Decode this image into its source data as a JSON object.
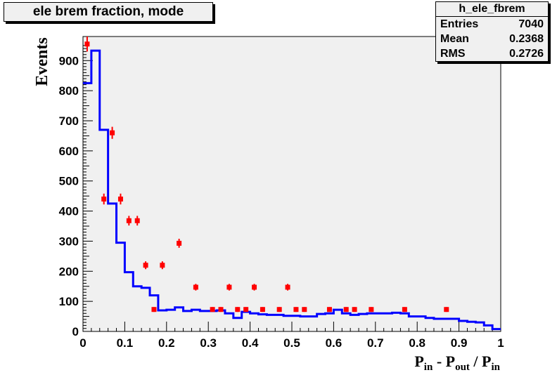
{
  "title": "ele brem fraction, mode",
  "stats": {
    "name": "h_ele_fbrem",
    "rows": [
      {
        "label": "Entries",
        "value": "7040"
      },
      {
        "label": "Mean",
        "value": "0.2368"
      },
      {
        "label": "RMS",
        "value": "0.2726"
      }
    ]
  },
  "colors": {
    "line": "#0000ff",
    "points": "#ff0000",
    "frame_bg": "#f0f0f0"
  },
  "chart_data": {
    "type": "histogram",
    "ylabel": "Events",
    "xlabel": {
      "base": "P",
      "sub1": "in",
      "mid": " - P",
      "sub2": "out",
      "sep": " / P",
      "sub3": "in"
    },
    "xlim": [
      0,
      1
    ],
    "ylim": [
      0,
      980
    ],
    "x_ticks": [
      "0",
      "0.1",
      "0.2",
      "0.3",
      "0.4",
      "0.5",
      "0.6",
      "0.7",
      "0.8",
      "0.9",
      "1"
    ],
    "y_ticks": [
      "0",
      "100",
      "200",
      "300",
      "400",
      "500",
      "600",
      "700",
      "800",
      "900"
    ],
    "series": [
      {
        "kind": "step-line",
        "bin_edges": [
          0,
          0.02,
          0.04,
          0.06,
          0.08,
          0.1,
          0.12,
          0.14,
          0.16,
          0.18,
          0.2,
          0.22,
          0.24,
          0.26,
          0.28,
          0.3,
          0.32,
          0.34,
          0.36,
          0.38,
          0.4,
          0.42,
          0.44,
          0.46,
          0.48,
          0.5,
          0.52,
          0.54,
          0.56,
          0.58,
          0.6,
          0.62,
          0.64,
          0.66,
          0.68,
          0.7,
          0.72,
          0.74,
          0.76,
          0.78,
          0.8,
          0.82,
          0.84,
          0.86,
          0.88,
          0.9,
          0.92,
          0.94,
          0.96,
          0.98,
          1.0
        ],
        "values": [
          825,
          933,
          670,
          425,
          295,
          197,
          150,
          145,
          120,
          70,
          72,
          80,
          68,
          72,
          68,
          68,
          70,
          60,
          45,
          65,
          60,
          57,
          55,
          55,
          52,
          52,
          50,
          50,
          58,
          60,
          72,
          60,
          55,
          58,
          60,
          60,
          60,
          62,
          60,
          50,
          50,
          45,
          42,
          42,
          42,
          35,
          32,
          30,
          20,
          8
        ]
      },
      {
        "kind": "points-with-errors",
        "points": [
          {
            "x": 0.01,
            "y": 955,
            "err": 25
          },
          {
            "x": 0.07,
            "y": 660,
            "err": 20
          },
          {
            "x": 0.05,
            "y": 440,
            "err": 18
          },
          {
            "x": 0.09,
            "y": 440,
            "err": 18
          },
          {
            "x": 0.11,
            "y": 368,
            "err": 16
          },
          {
            "x": 0.13,
            "y": 368,
            "err": 16
          },
          {
            "x": 0.15,
            "y": 220,
            "err": 13
          },
          {
            "x": 0.17,
            "y": 73,
            "err": 8
          },
          {
            "x": 0.19,
            "y": 220,
            "err": 13
          },
          {
            "x": 0.23,
            "y": 293,
            "err": 15
          },
          {
            "x": 0.27,
            "y": 147,
            "err": 11
          },
          {
            "x": 0.31,
            "y": 73,
            "err": 8
          },
          {
            "x": 0.33,
            "y": 73,
            "err": 8
          },
          {
            "x": 0.35,
            "y": 147,
            "err": 11
          },
          {
            "x": 0.37,
            "y": 73,
            "err": 8
          },
          {
            "x": 0.39,
            "y": 73,
            "err": 8
          },
          {
            "x": 0.41,
            "y": 147,
            "err": 11
          },
          {
            "x": 0.43,
            "y": 73,
            "err": 8
          },
          {
            "x": 0.47,
            "y": 73,
            "err": 8
          },
          {
            "x": 0.49,
            "y": 147,
            "err": 11
          },
          {
            "x": 0.51,
            "y": 73,
            "err": 8
          },
          {
            "x": 0.53,
            "y": 73,
            "err": 8
          },
          {
            "x": 0.59,
            "y": 73,
            "err": 8
          },
          {
            "x": 0.63,
            "y": 73,
            "err": 8
          },
          {
            "x": 0.65,
            "y": 73,
            "err": 8
          },
          {
            "x": 0.69,
            "y": 73,
            "err": 8
          },
          {
            "x": 0.77,
            "y": 73,
            "err": 8
          },
          {
            "x": 0.87,
            "y": 73,
            "err": 8
          }
        ]
      }
    ]
  }
}
